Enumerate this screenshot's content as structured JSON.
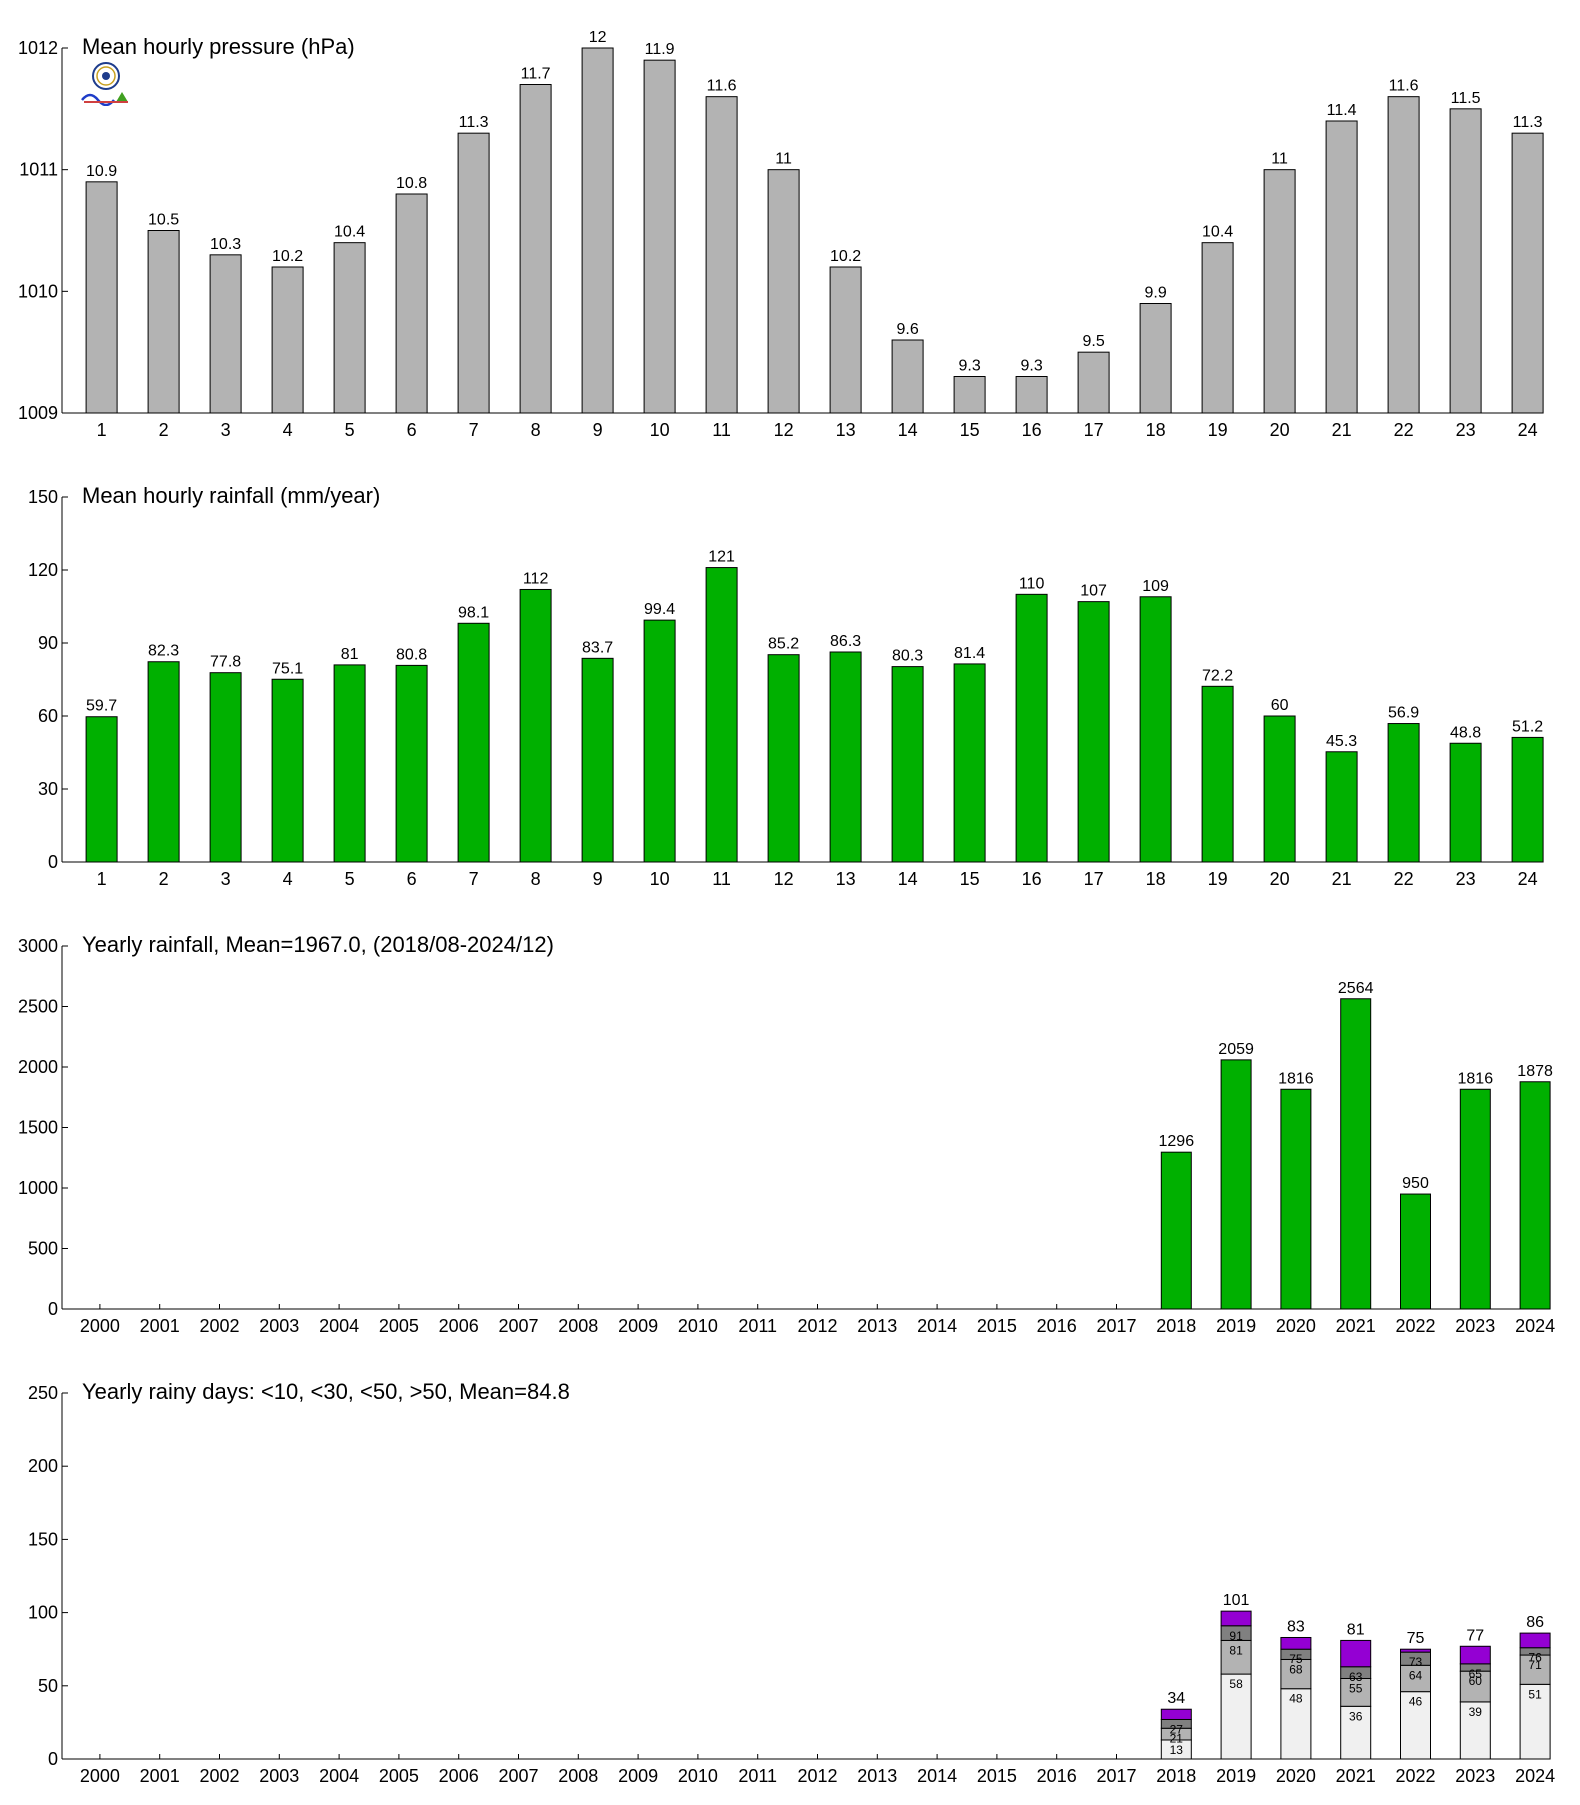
{
  "colors": {
    "pressure_bar": "#b3b3b3",
    "rain_bar": "#00b000",
    "band_lt10": "#f0f0f0",
    "band_lt30": "#b3b3b3",
    "band_lt50": "#808080",
    "band_gt50": "#9400d3"
  },
  "logo": {
    "icon": "observatory-logo-icon"
  },
  "chart_data": [
    {
      "type": "bar",
      "title": "Mean hourly pressure (hPa)",
      "categories": [
        "1",
        "2",
        "3",
        "4",
        "5",
        "6",
        "7",
        "8",
        "9",
        "10",
        "11",
        "12",
        "13",
        "14",
        "15",
        "16",
        "17",
        "18",
        "19",
        "20",
        "21",
        "22",
        "23",
        "24"
      ],
      "values": [
        1010.9,
        1010.5,
        1010.3,
        1010.2,
        1010.4,
        1010.8,
        1011.3,
        1011.7,
        1012.0,
        1011.9,
        1011.6,
        1011.0,
        1010.2,
        1009.6,
        1009.3,
        1009.3,
        1009.5,
        1009.9,
        1010.4,
        1011.0,
        1011.4,
        1011.6,
        1011.5,
        1011.3
      ],
      "labels": [
        "10.9",
        "10.5",
        "10.3",
        "10.2",
        "10.4",
        "10.8",
        "11.3",
        "11.7",
        "12",
        "11.9",
        "11.6",
        "11",
        "10.2",
        "9.6",
        "9.3",
        "9.3",
        "9.5",
        "9.9",
        "10.4",
        "11",
        "11.4",
        "11.6",
        "11.5",
        "11.3"
      ],
      "ylim": [
        1009,
        1012
      ],
      "yticks": [
        1009,
        1010,
        1011,
        1012
      ],
      "grid": false
    },
    {
      "type": "bar",
      "title": "Mean hourly rainfall (mm/year)",
      "categories": [
        "1",
        "2",
        "3",
        "4",
        "5",
        "6",
        "7",
        "8",
        "9",
        "10",
        "11",
        "12",
        "13",
        "14",
        "15",
        "16",
        "17",
        "18",
        "19",
        "20",
        "21",
        "22",
        "23",
        "24"
      ],
      "values": [
        59.7,
        82.3,
        77.8,
        75.1,
        81,
        80.8,
        98.1,
        112,
        83.7,
        99.4,
        121,
        85.2,
        86.3,
        80.3,
        81.4,
        110,
        107,
        109,
        72.2,
        60,
        45.3,
        56.9,
        48.8,
        51.2
      ],
      "labels": [
        "59.7",
        "82.3",
        "77.8",
        "75.1",
        "81",
        "80.8",
        "98.1",
        "112",
        "83.7",
        "99.4",
        "121",
        "85.2",
        "86.3",
        "80.3",
        "81.4",
        "110",
        "107",
        "109",
        "72.2",
        "60",
        "45.3",
        "56.9",
        "48.8",
        "51.2"
      ],
      "ylim": [
        0,
        150
      ],
      "yticks": [
        0,
        30,
        60,
        90,
        120,
        150
      ],
      "grid": false
    },
    {
      "type": "bar",
      "title": "Yearly rainfall, Mean=1967.0, (2018/08-2024/12)",
      "categories": [
        "2000",
        "2001",
        "2002",
        "2003",
        "2004",
        "2005",
        "2006",
        "2007",
        "2008",
        "2009",
        "2010",
        "2011",
        "2012",
        "2013",
        "2014",
        "2015",
        "2016",
        "2017",
        "2018",
        "2019",
        "2020",
        "2021",
        "2022",
        "2023",
        "2024"
      ],
      "values": [
        null,
        null,
        null,
        null,
        null,
        null,
        null,
        null,
        null,
        null,
        null,
        null,
        null,
        null,
        null,
        null,
        null,
        null,
        1296,
        2059,
        1816,
        2564,
        950,
        1816,
        1878
      ],
      "labels": [
        "",
        "",
        "",
        "",
        "",
        "",
        "",
        "",
        "",
        "",
        "",
        "",
        "",
        "",
        "",
        "",
        "",
        "",
        "1296",
        "2059",
        "1816",
        "2564",
        "950",
        "1816",
        "1878"
      ],
      "ylim": [
        0,
        3000
      ],
      "yticks": [
        0,
        500,
        1000,
        1500,
        2000,
        2500,
        3000
      ],
      "grid": false
    },
    {
      "type": "bar",
      "stacked": true,
      "title": "Yearly rainy days: <10, <30, <50, >50, Mean=84.8",
      "categories": [
        "2000",
        "2001",
        "2002",
        "2003",
        "2004",
        "2005",
        "2006",
        "2007",
        "2008",
        "2009",
        "2010",
        "2011",
        "2012",
        "2013",
        "2014",
        "2015",
        "2016",
        "2017",
        "2018",
        "2019",
        "2020",
        "2021",
        "2022",
        "2023",
        "2024"
      ],
      "cumulative": {
        "lt10": [
          null,
          null,
          null,
          null,
          null,
          null,
          null,
          null,
          null,
          null,
          null,
          null,
          null,
          null,
          null,
          null,
          null,
          null,
          13,
          58,
          48,
          36,
          46,
          39,
          51
        ],
        "lt30": [
          null,
          null,
          null,
          null,
          null,
          null,
          null,
          null,
          null,
          null,
          null,
          null,
          null,
          null,
          null,
          null,
          null,
          null,
          21,
          81,
          68,
          55,
          64,
          60,
          71
        ],
        "lt50": [
          null,
          null,
          null,
          null,
          null,
          null,
          null,
          null,
          null,
          null,
          null,
          null,
          null,
          null,
          null,
          null,
          null,
          null,
          27,
          91,
          75,
          63,
          73,
          65,
          76
        ],
        "total": [
          null,
          null,
          null,
          null,
          null,
          null,
          null,
          null,
          null,
          null,
          null,
          null,
          null,
          null,
          null,
          null,
          null,
          null,
          34,
          101,
          83,
          81,
          75,
          77,
          86
        ]
      },
      "ylim": [
        0,
        250
      ],
      "yticks": [
        0,
        50,
        100,
        150,
        200,
        250
      ],
      "grid": false
    }
  ]
}
